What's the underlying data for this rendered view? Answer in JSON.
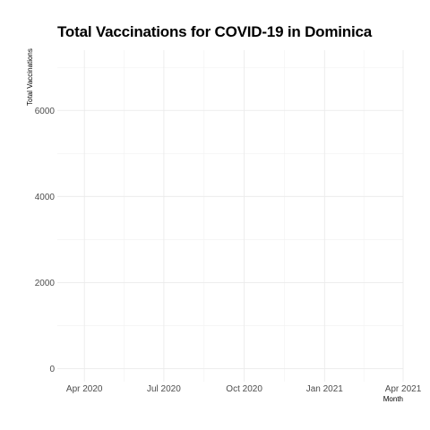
{
  "chart_data": {
    "type": "line",
    "title": "Total Vaccinations for COVID-19 in Dominica",
    "xlabel": "Month",
    "ylabel": "Total Vaccinations",
    "x_ticks": [
      "Apr 2020",
      "Jul 2020",
      "Oct 2020",
      "Jan 2021",
      "Apr 2021"
    ],
    "y_ticks": [
      0,
      2000,
      4000,
      6000
    ],
    "xlim": [
      "2020-03-01",
      "2021-04-01"
    ],
    "ylim": [
      -300,
      7400
    ],
    "grid": true,
    "series": []
  }
}
